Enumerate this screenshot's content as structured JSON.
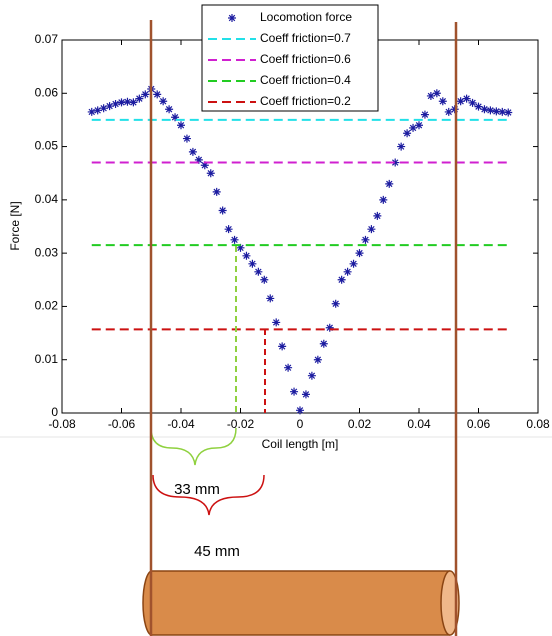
{
  "chart_data": {
    "type": "scatter",
    "x_label": "Coil length [m]",
    "y_label": "Force [N]",
    "xlim": [
      -0.08,
      0.08
    ],
    "xticks": [
      -0.08,
      -0.06,
      -0.04,
      -0.02,
      0,
      0.02,
      0.04,
      0.06,
      0.08
    ],
    "ylim": [
      0,
      0.07
    ],
    "yticks": [
      0,
      0.01,
      0.02,
      0.03,
      0.04,
      0.05,
      0.06,
      0.07
    ],
    "legend": "top-center",
    "series": [
      {
        "name": "Locomotion force",
        "color": "#1c1ca0",
        "marker": "*",
        "x": [
          -0.07,
          -0.068,
          -0.066,
          -0.064,
          -0.062,
          -0.06,
          -0.058,
          -0.056,
          -0.054,
          -0.052,
          -0.05,
          -0.048,
          -0.046,
          -0.044,
          -0.042,
          -0.04,
          -0.038,
          -0.036,
          -0.034,
          -0.032,
          -0.03,
          -0.028,
          -0.026,
          -0.024,
          -0.022,
          -0.02,
          -0.018,
          -0.016,
          -0.014,
          -0.012,
          -0.01,
          -0.008,
          -0.006,
          -0.004,
          -0.002,
          0,
          0.002,
          0.004,
          0.006,
          0.008,
          0.01,
          0.012,
          0.014,
          0.016,
          0.018,
          0.02,
          0.022,
          0.024,
          0.026,
          0.028,
          0.03,
          0.032,
          0.034,
          0.036,
          0.038,
          0.04,
          0.042,
          0.044,
          0.046,
          0.048,
          0.05,
          0.052,
          0.054,
          0.056,
          0.058,
          0.06,
          0.062,
          0.064,
          0.066,
          0.068,
          0.07
        ],
        "values": [
          0.0565,
          0.0568,
          0.0572,
          0.0576,
          0.058,
          0.0583,
          0.0584,
          0.0583,
          0.059,
          0.0598,
          0.0608,
          0.0598,
          0.0585,
          0.057,
          0.0555,
          0.054,
          0.0515,
          0.049,
          0.0475,
          0.0465,
          0.045,
          0.0415,
          0.038,
          0.0345,
          0.0325,
          0.031,
          0.0295,
          0.028,
          0.0265,
          0.025,
          0.0215,
          0.017,
          0.0125,
          0.0085,
          0.004,
          0.0005,
          0.0035,
          0.007,
          0.01,
          0.013,
          0.016,
          0.0205,
          0.025,
          0.0265,
          0.028,
          0.03,
          0.0325,
          0.0345,
          0.037,
          0.04,
          0.043,
          0.047,
          0.05,
          0.0525,
          0.0535,
          0.054,
          0.056,
          0.0595,
          0.06,
          0.0585,
          0.0565,
          0.057,
          0.0585,
          0.059,
          0.0582,
          0.0575,
          0.057,
          0.0568,
          0.0566,
          0.0565,
          0.0564
        ]
      },
      {
        "name": "Coeff friction=0.7",
        "color": "#22e0e8",
        "marker": "--",
        "x": [
          -0.07,
          0.07
        ],
        "values": [
          0.055,
          0.055
        ]
      },
      {
        "name": "Coeff friction=0.6",
        "color": "#d020d0",
        "marker": "--",
        "x": [
          -0.07,
          0.07
        ],
        "values": [
          0.047,
          0.047
        ]
      },
      {
        "name": "Coeff friction=0.4",
        "color": "#22cc22",
        "marker": "--",
        "x": [
          -0.07,
          0.07
        ],
        "values": [
          0.0315,
          0.0315
        ]
      },
      {
        "name": "Coeff friction=0.2",
        "color": "#cc1111",
        "marker": "--",
        "x": [
          -0.07,
          0.07
        ],
        "values": [
          0.0157,
          0.0157
        ]
      }
    ],
    "annotations": [
      "33 mm",
      "45 mm"
    ]
  }
}
